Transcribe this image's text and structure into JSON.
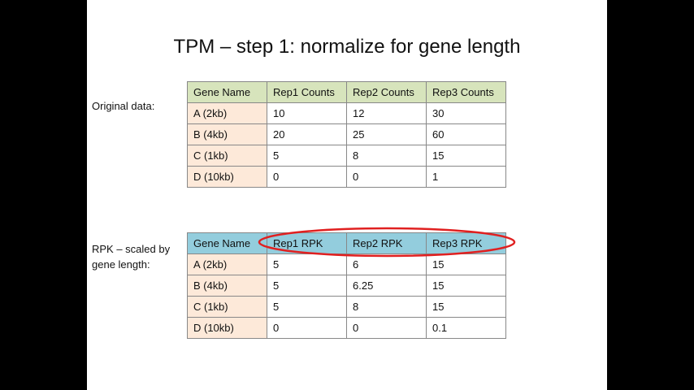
{
  "slide": {
    "title": "TPM – step 1: normalize for gene length",
    "original_label": "Original data:",
    "rpk_label_line1": "RPK – scaled by",
    "rpk_label_line2": "gene length:"
  },
  "table1": {
    "headers": [
      "Gene Name",
      "Rep1 Counts",
      "Rep2 Counts",
      "Rep3 Counts"
    ],
    "rows": [
      [
        "A (2kb)",
        "10",
        "12",
        "30"
      ],
      [
        "B (4kb)",
        "20",
        "25",
        "60"
      ],
      [
        "C (1kb)",
        "5",
        "8",
        "15"
      ],
      [
        "D (10kb)",
        "0",
        "0",
        "1"
      ]
    ]
  },
  "table2": {
    "headers": [
      "Gene Name",
      "Rep1 RPK",
      "Rep2 RPK",
      "Rep3 RPK"
    ],
    "rows": [
      [
        "A (2kb)",
        "5",
        "6",
        "15"
      ],
      [
        "B (4kb)",
        "5",
        "6.25",
        "15"
      ],
      [
        "C (1kb)",
        "5",
        "8",
        "15"
      ],
      [
        "D (10kb)",
        "0",
        "0",
        "0.1"
      ]
    ]
  },
  "colors": {
    "header_green": "#d7e4bc",
    "header_blue": "#93cddd",
    "row_label": "#fde9d9",
    "highlight_ring": "#e02020"
  }
}
